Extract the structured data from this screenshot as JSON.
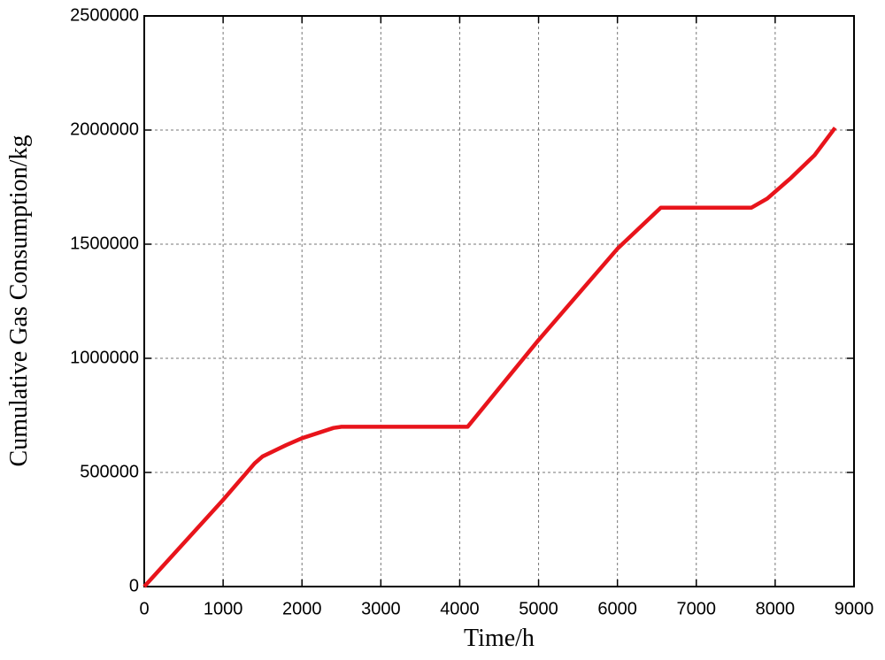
{
  "chart_data": {
    "type": "line",
    "x_label": "Time/h",
    "y_label": "Cumulative Gas Consumption/kg",
    "x": [
      0,
      1000,
      1400,
      1500,
      1800,
      2000,
      2400,
      2500,
      4100,
      5000,
      6000,
      6550,
      7700,
      7900,
      8200,
      8500,
      8760
    ],
    "series": [
      {
        "color": "#e8141b",
        "values": [
          0,
          380000,
          540000,
          570000,
          620000,
          650000,
          695000,
          700000,
          700000,
          1080000,
          1480000,
          1660000,
          1660000,
          1700000,
          1790000,
          1890000,
          2010000
        ]
      }
    ],
    "xlim": [
      0,
      9000
    ],
    "xticks": [
      0,
      1000,
      2000,
      3000,
      4000,
      5000,
      6000,
      7000,
      8000,
      9000
    ],
    "ylim": [
      0,
      2500000
    ],
    "yticks": [
      0,
      500000,
      1000000,
      1500000,
      2000000,
      2500000
    ],
    "grid": true
  }
}
